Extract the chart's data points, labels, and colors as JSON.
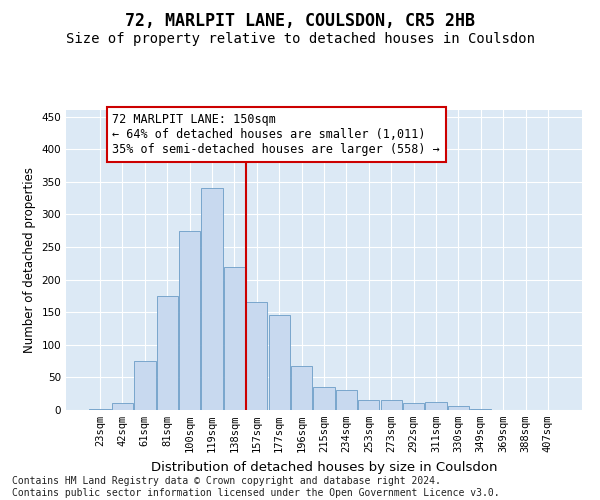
{
  "title": "72, MARLPIT LANE, COULSDON, CR5 2HB",
  "subtitle": "Size of property relative to detached houses in Coulsdon",
  "xlabel": "Distribution of detached houses by size in Coulsdon",
  "ylabel": "Number of detached properties",
  "categories": [
    "23sqm",
    "42sqm",
    "61sqm",
    "81sqm",
    "100sqm",
    "119sqm",
    "138sqm",
    "157sqm",
    "177sqm",
    "196sqm",
    "215sqm",
    "234sqm",
    "253sqm",
    "273sqm",
    "292sqm",
    "311sqm",
    "330sqm",
    "349sqm",
    "369sqm",
    "388sqm",
    "407sqm"
  ],
  "values": [
    2,
    10,
    75,
    175,
    275,
    340,
    220,
    165,
    145,
    68,
    35,
    30,
    15,
    15,
    10,
    12,
    6,
    1,
    0,
    0,
    0
  ],
  "bar_color": "#c8d9ef",
  "bar_edge_color": "#6b9cc7",
  "vline_color": "#cc0000",
  "annotation_text": "72 MARLPIT LANE: 150sqm\n← 64% of detached houses are smaller (1,011)\n35% of semi-detached houses are larger (558) →",
  "annotation_box_color": "white",
  "annotation_box_edge_color": "#cc0000",
  "ylim": [
    0,
    460
  ],
  "yticks": [
    0,
    50,
    100,
    150,
    200,
    250,
    300,
    350,
    400,
    450
  ],
  "bg_color": "#dce9f5",
  "footer_line1": "Contains HM Land Registry data © Crown copyright and database right 2024.",
  "footer_line2": "Contains public sector information licensed under the Open Government Licence v3.0.",
  "title_fontsize": 12,
  "subtitle_fontsize": 10,
  "xlabel_fontsize": 9.5,
  "ylabel_fontsize": 8.5,
  "tick_fontsize": 7.5,
  "annotation_fontsize": 8.5,
  "footer_fontsize": 7
}
